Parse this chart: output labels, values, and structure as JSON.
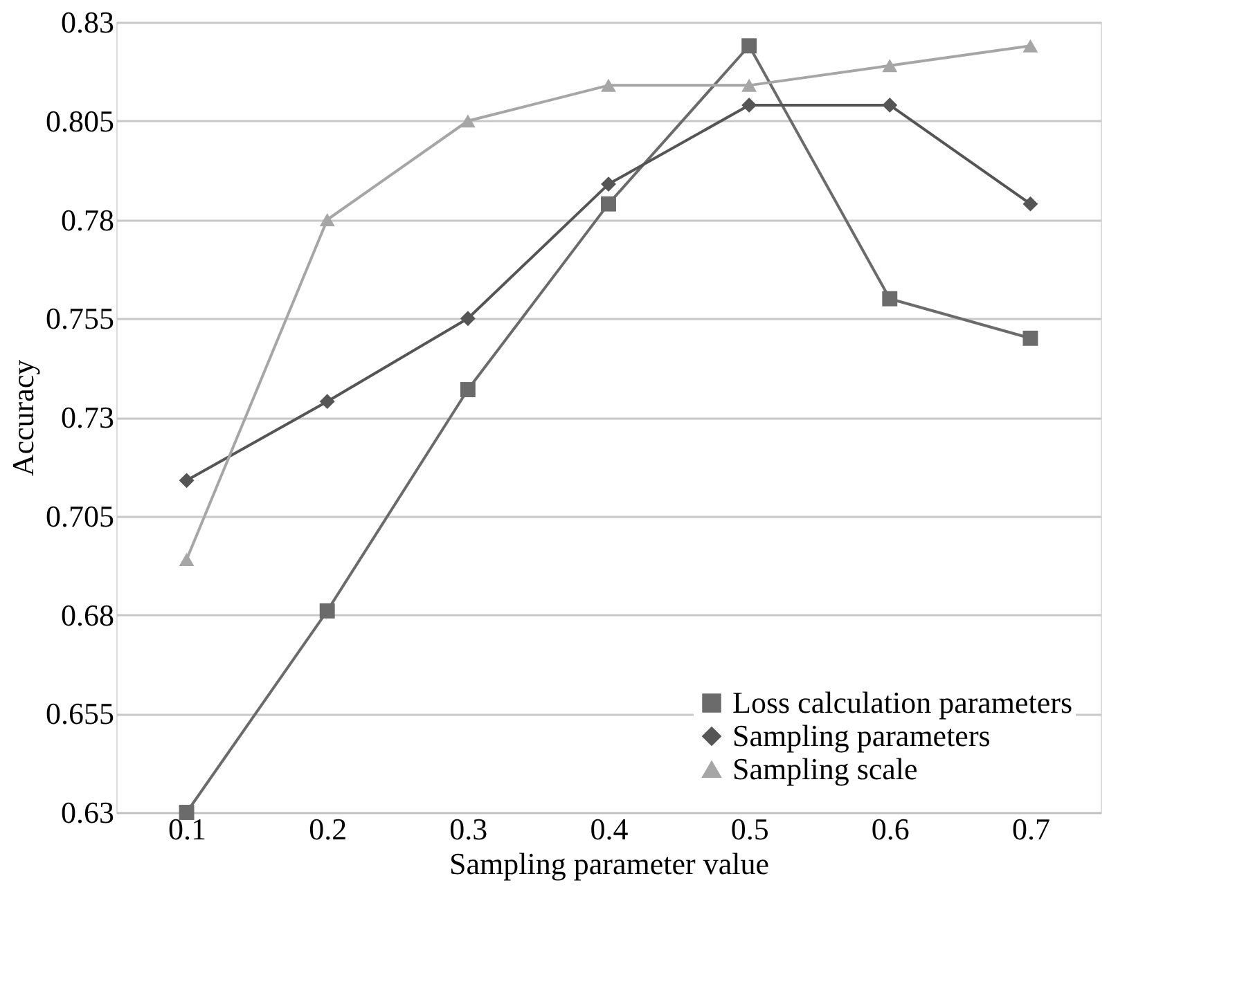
{
  "chart_data": {
    "type": "line",
    "xlabel": "Sampling parameter value",
    "ylabel": "Accuracy",
    "categories": [
      "0.1",
      "0.2",
      "0.3",
      "0.4",
      "0.5",
      "0.6",
      "0.7"
    ],
    "series": [
      {
        "name": "Loss calculation parameters",
        "color": "#6b6b6b",
        "marker": "square",
        "values": [
          0.63,
          0.681,
          0.737,
          0.784,
          0.824,
          0.76,
          0.75
        ]
      },
      {
        "name": "Sampling parameters",
        "color": "#555555",
        "marker": "diamond",
        "values": [
          0.714,
          0.734,
          0.755,
          0.789,
          0.809,
          0.809,
          0.784
        ]
      },
      {
        "name": "Sampling scale",
        "color": "#a6a6a6",
        "marker": "triangle",
        "values": [
          0.694,
          0.78,
          0.805,
          0.814,
          0.814,
          0.819,
          0.824
        ]
      }
    ],
    "ylim": [
      0.63,
      0.83
    ],
    "yticks": [
      0.63,
      0.655,
      0.68,
      0.705,
      0.73,
      0.755,
      0.78,
      0.805,
      0.83
    ],
    "grid": "y",
    "legend": "bottom right",
    "line_style": "solid"
  }
}
